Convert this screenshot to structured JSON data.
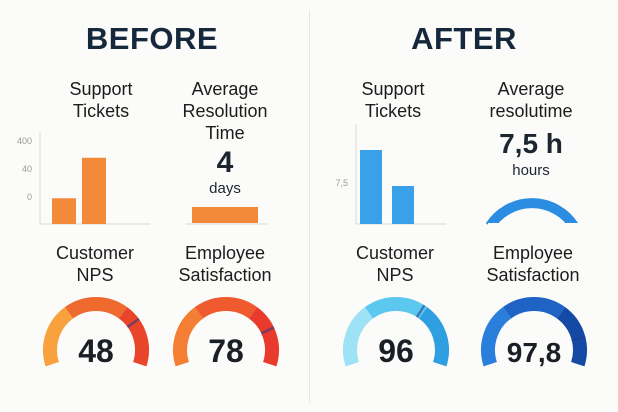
{
  "before": {
    "title": "BEFORE",
    "tickets": {
      "label_line1": "Support",
      "label_line2": "Tickets",
      "ticks": [
        "400",
        "40",
        "0"
      ],
      "bars": [
        {
          "value": 0.28,
          "color": "#f28a3a"
        },
        {
          "value": 0.72,
          "color": "#f28a3a"
        }
      ]
    },
    "resolution": {
      "label_line1": "Average",
      "label_line2": "Resolution",
      "label_line3": "Time",
      "value": "4",
      "unit": "days",
      "bar_color": "#f28a3a"
    },
    "nps": {
      "label_line1": "Customer",
      "label_line2": "NPS",
      "value": "48",
      "fill": 0.75,
      "colors": [
        "#f7a23d",
        "#ee6a2e",
        "#e8452b"
      ]
    },
    "employee": {
      "label_line1": "Employee",
      "label_line2": "Satisfaction",
      "value": "78",
      "fill": 0.8,
      "colors": [
        "#f47f34",
        "#ef5a2e",
        "#e83a2d"
      ]
    }
  },
  "after": {
    "title": "AFTER",
    "tickets": {
      "label_line1": "Support",
      "label_line2": "Tickets",
      "ticks": [
        "7,5"
      ],
      "bars": [
        {
          "value": 0.74,
          "color": "#3aa0ea"
        },
        {
          "value": 0.38,
          "color": "#3aa0ea"
        }
      ]
    },
    "resolution": {
      "label_line1": "Average",
      "label_line2": "resolutime",
      "value": "7,5 h",
      "unit": "hours",
      "arc_color": "#2a8de2"
    },
    "nps": {
      "label_line1": "Customer",
      "label_line2": "NPS",
      "value": "96",
      "fill": 0.65,
      "colors": [
        "#9ee2f5",
        "#5cc8f0",
        "#2e9fe0"
      ]
    },
    "employee": {
      "label_line1": "Employee",
      "label_line2": "Satisfaction",
      "value": "97,8",
      "fill": 0.85,
      "colors": [
        "#2a7fdc",
        "#1f63c4",
        "#144aa3"
      ]
    }
  },
  "chart_data": [
    {
      "type": "bar",
      "title": "Support Tickets",
      "series": [
        {
          "values": [
            0.28,
            0.72
          ]
        }
      ]
    },
    {
      "type": "bar",
      "title": "Average Resolution Time",
      "categories": [
        "4 days"
      ]
    },
    {
      "type": "gauge",
      "title": "Customer NPS",
      "values": [
        48
      ]
    },
    {
      "type": "gauge",
      "title": "Employee Satisfaction",
      "values": [
        78
      ]
    },
    {
      "type": "bar",
      "title": "Support Tickets",
      "series": [
        {
          "values": [
            0.74,
            0.38
          ]
        }
      ]
    },
    {
      "type": "gauge",
      "title": "Average resolutime",
      "categories": [
        "7,5 h hours"
      ]
    },
    {
      "type": "gauge",
      "title": "Customer NPS",
      "values": [
        96
      ]
    },
    {
      "type": "gauge",
      "title": "Employee Satisfaction",
      "values": [
        97.8
      ]
    }
  ]
}
